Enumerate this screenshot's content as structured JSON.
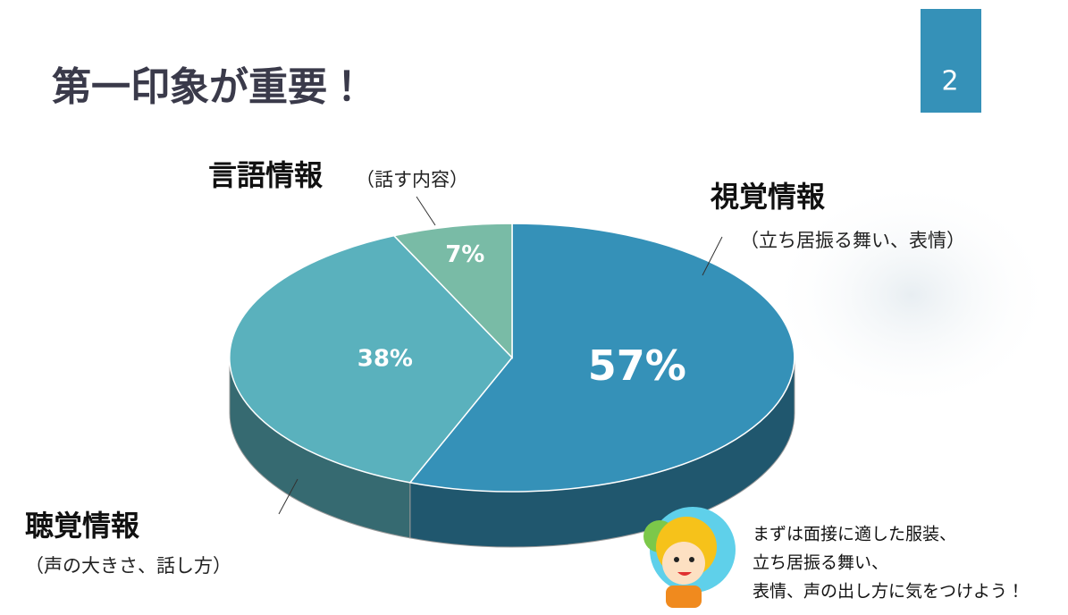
{
  "chart_data": {
    "type": "pie",
    "title": "第一印象が重要！",
    "categories": [
      "視覚情報",
      "聴覚情報",
      "言語情報"
    ],
    "category_notes": [
      "（立ち居振る舞い、表情）",
      "（声の大きさ、話し方）",
      "（話す内容）"
    ],
    "values": [
      57,
      38,
      7
    ],
    "value_labels": [
      "57%",
      "38%",
      "7%"
    ],
    "colors": [
      "#3591b8",
      "#5ab1bd",
      "#79bba6"
    ]
  },
  "slide": {
    "page_number": "2",
    "note": [
      "まずは面接に適した服装、",
      "立ち居振る舞い、",
      "表情、声の出し方に気をつけよう！"
    ]
  }
}
